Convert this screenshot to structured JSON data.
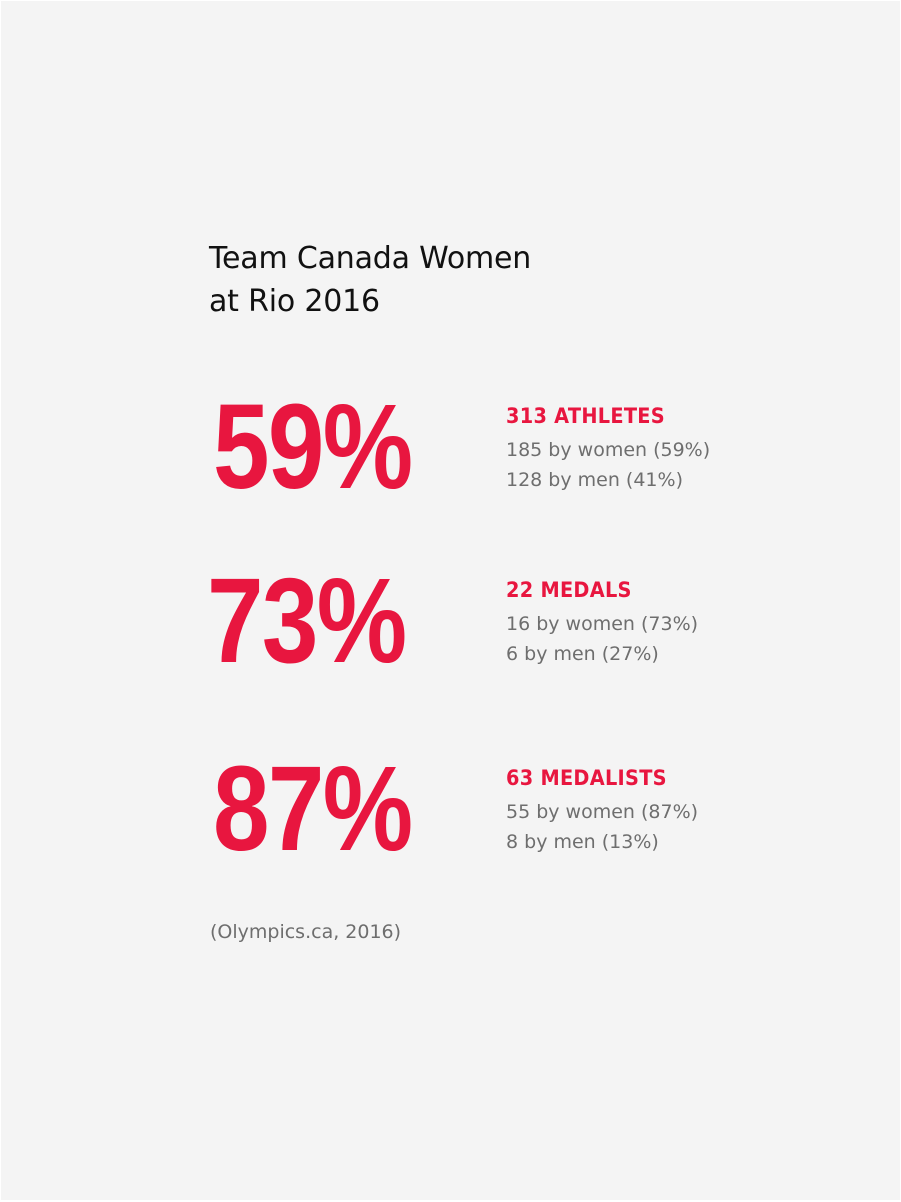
{
  "colors": {
    "background": "#f4f4f4",
    "accent": "#e8163f",
    "title_text": "#111111",
    "secondary_text": "#6e6e6e"
  },
  "title": {
    "line1": "Team Canada Women",
    "line2": "at Rio 2016"
  },
  "stats": [
    {
      "percent": "59%",
      "heading": "313 ATHLETES",
      "women": "185 by women (59%)",
      "men": "128 by men (41%)"
    },
    {
      "percent": "73%",
      "heading": "22 MEDALS",
      "women": "16 by women (73%)",
      "men": "6 by men (27%)"
    },
    {
      "percent": "87%",
      "heading": "63 MEDALISTS",
      "women": "55 by women (87%)",
      "men": "8 by men (13%)"
    }
  ],
  "source": "(Olympics.ca, 2016)"
}
